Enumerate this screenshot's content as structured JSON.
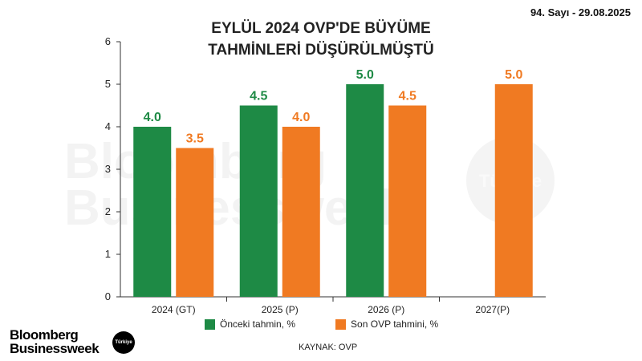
{
  "header": {
    "issue": "94. Sayı - 29.08.2025"
  },
  "footer": {
    "source": "KAYNAK: OVP",
    "logo_line1": "Bloomberg",
    "logo_line2": "Businessweek",
    "logo_badge": "Türkiye"
  },
  "watermark": {
    "line1": "Bloomberg",
    "line2": "Businessweek",
    "badge": "Türkiye"
  },
  "colors": {
    "green": "#1e8a45",
    "orange": "#f07a22"
  },
  "chart_data": {
    "type": "bar",
    "title_line1": "EYLÜL 2024 OVP'DE BÜYÜME",
    "title_line2": "TAHMİNLERİ DÜŞÜRÜLMÜŞTÜ",
    "categories": [
      "2024 (GT)",
      "2025 (P)",
      "2026 (P)",
      "2027(P)"
    ],
    "series": [
      {
        "name": "Önceki tahmin, %",
        "values": [
          4.0,
          4.5,
          5.0,
          null
        ],
        "color": "#1e8a45"
      },
      {
        "name": "Son OVP tahmini, %",
        "values": [
          3.5,
          4.0,
          4.5,
          5.0
        ],
        "color": "#f07a22"
      }
    ],
    "data_labels": [
      [
        "4.0",
        "4.5",
        "5.0",
        ""
      ],
      [
        "3.5",
        "4.0",
        "4.5",
        "5.0"
      ]
    ],
    "yticks": [
      "0",
      "1",
      "2",
      "3",
      "4",
      "5",
      "6"
    ],
    "ylim": [
      0,
      6
    ],
    "xlabel": "",
    "ylabel": "",
    "legend_position": "bottom",
    "grid": false
  }
}
